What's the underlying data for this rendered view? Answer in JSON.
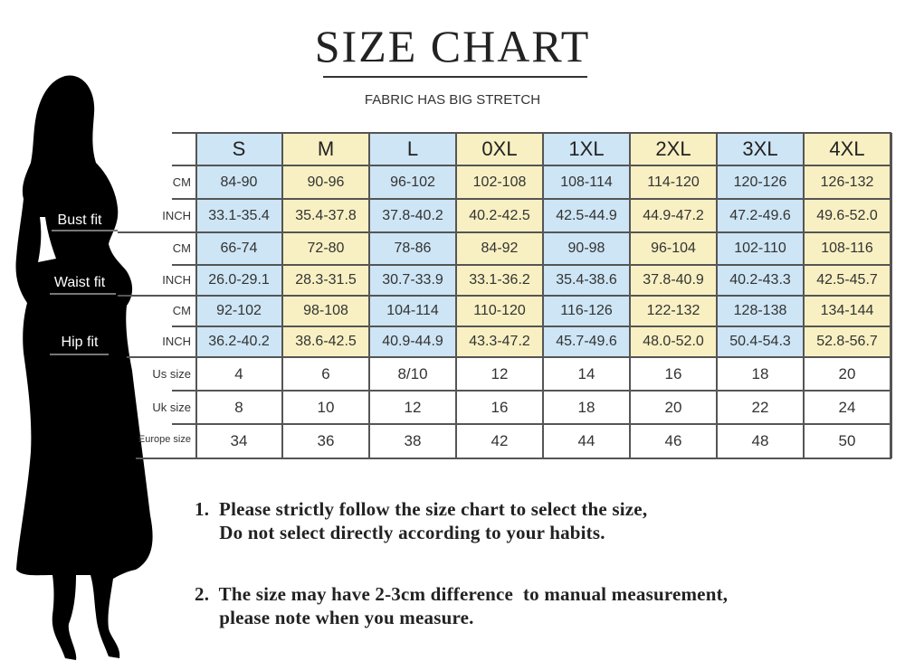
{
  "header": {
    "title": "SIZE CHART",
    "subtitle": "FABRIC HAS BIG STRETCH"
  },
  "fit_labels": [
    "Bust fit",
    "Waist fit",
    "Hip fit"
  ],
  "colors": {
    "blue": "#cde5f5",
    "yellow": "#f8f0c2",
    "plain": "#ffffff"
  },
  "table": {
    "sizes": [
      "S",
      "M",
      "L",
      "0XL",
      "1XL",
      "2XL",
      "3XL",
      "4XL"
    ],
    "rows": [
      {
        "label": "CM",
        "values": [
          "84-90",
          "90-96",
          "96-102",
          "102-108",
          "108-114",
          "114-120",
          "120-126",
          "126-132"
        ]
      },
      {
        "label": "INCH",
        "values": [
          "33.1-35.4",
          "35.4-37.8",
          "37.8-40.2",
          "40.2-42.5",
          "42.5-44.9",
          "44.9-47.2",
          "47.2-49.6",
          "49.6-52.0"
        ]
      },
      {
        "label": "CM",
        "values": [
          "66-74",
          "72-80",
          "78-86",
          "84-92",
          "90-98",
          "96-104",
          "102-110",
          "108-116"
        ]
      },
      {
        "label": "INCH",
        "values": [
          "26.0-29.1",
          "28.3-31.5",
          "30.7-33.9",
          "33.1-36.2",
          "35.4-38.6",
          "37.8-40.9",
          "40.2-43.3",
          "42.5-45.7"
        ]
      },
      {
        "label": "CM",
        "values": [
          "92-102",
          "98-108",
          "104-114",
          "110-120",
          "116-126",
          "122-132",
          "128-138",
          "134-144"
        ]
      },
      {
        "label": "INCH",
        "values": [
          "36.2-40.2",
          "38.6-42.5",
          "40.9-44.9",
          "43.3-47.2",
          "45.7-49.6",
          "48.0-52.0",
          "50.4-54.3",
          "52.8-56.7"
        ]
      },
      {
        "label": "Us size",
        "values": [
          "4",
          "6",
          "8/10",
          "12",
          "14",
          "16",
          "18",
          "20"
        ]
      },
      {
        "label": "Uk size",
        "values": [
          "8",
          "10",
          "12",
          "16",
          "18",
          "20",
          "22",
          "24"
        ]
      },
      {
        "label": "Europe size",
        "values": [
          "34",
          "36",
          "38",
          "42",
          "44",
          "46",
          "48",
          "50"
        ]
      }
    ]
  },
  "notes": [
    "1.  Please strictly follow the size chart to select the size,",
    "     Do not select directly according to your habits.",
    "2.  The size may have 2-3cm difference  to manual measurement,",
    "     please note when you measure."
  ]
}
